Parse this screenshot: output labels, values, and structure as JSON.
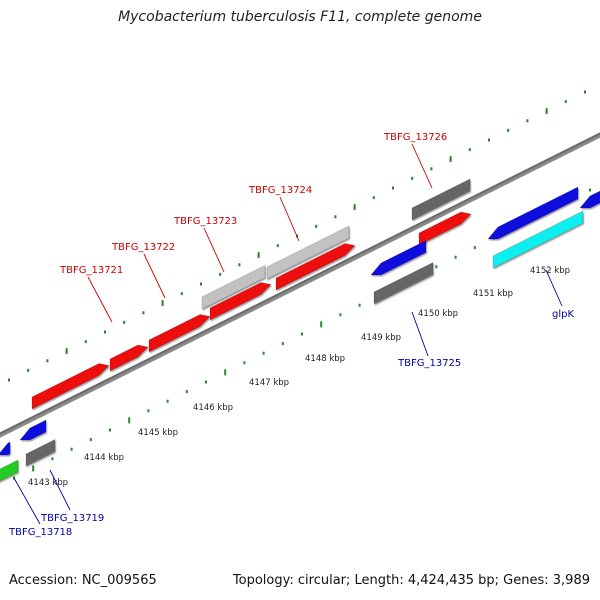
{
  "title": "Mycobacterium tuberculosis F11, complete genome",
  "footer": {
    "accession": "Accession: NC_009565",
    "summary": "Topology: circular; Length: 4,424,435 bp; Genes: 3,989"
  },
  "colors": {
    "red": "#ee1111",
    "blue": "#1111dd",
    "gray": "#666666",
    "lightgray": "#c2c2c2",
    "cyan": "#11eeee",
    "green": "#22cc22",
    "tick": "#228822",
    "redLabel": "#cc0000",
    "blueLabel": "#0000aa"
  },
  "coordinates": [
    {
      "label": "4143 kbp"
    },
    {
      "label": "4144 kbp"
    },
    {
      "label": "4145 kbp"
    },
    {
      "label": "4146 kbp"
    },
    {
      "label": "4147 kbp"
    },
    {
      "label": "4148 kbp"
    },
    {
      "label": "4149 kbp"
    },
    {
      "label": "4150 kbp"
    },
    {
      "label": "4151 kbp"
    },
    {
      "label": "4152 kbp"
    }
  ],
  "features": [
    {
      "id": "f1",
      "color": "red",
      "label": ""
    },
    {
      "id": "f2",
      "color": "red",
      "label": "TBFG_13721"
    },
    {
      "id": "f3",
      "color": "red",
      "label": "TBFG_13722"
    },
    {
      "id": "f4",
      "color": "red",
      "label": "TBFG_13723"
    },
    {
      "id": "f5",
      "color": "lightgray",
      "label": ""
    },
    {
      "id": "f6",
      "color": "red",
      "label": "TBFG_13724"
    },
    {
      "id": "f7",
      "color": "lightgray",
      "label": ""
    },
    {
      "id": "f8",
      "color": "red",
      "label": "TBFG_13726"
    },
    {
      "id": "f9",
      "color": "gray",
      "label": ""
    },
    {
      "id": "f10",
      "color": "blue",
      "label": ""
    },
    {
      "id": "f11",
      "color": "gray",
      "label": "TBFG_13725"
    },
    {
      "id": "f12",
      "color": "blue",
      "label": ""
    },
    {
      "id": "f13",
      "color": "cyan",
      "label": "glpK"
    },
    {
      "id": "f14",
      "color": "blue",
      "label": ""
    },
    {
      "id": "f15",
      "color": "blue",
      "label": ""
    },
    {
      "id": "f16",
      "color": "gray",
      "label": "TBFG_13719"
    },
    {
      "id": "f17",
      "color": "blue",
      "label": ""
    },
    {
      "id": "f18",
      "color": "green",
      "label": "TBFG_13718"
    }
  ]
}
